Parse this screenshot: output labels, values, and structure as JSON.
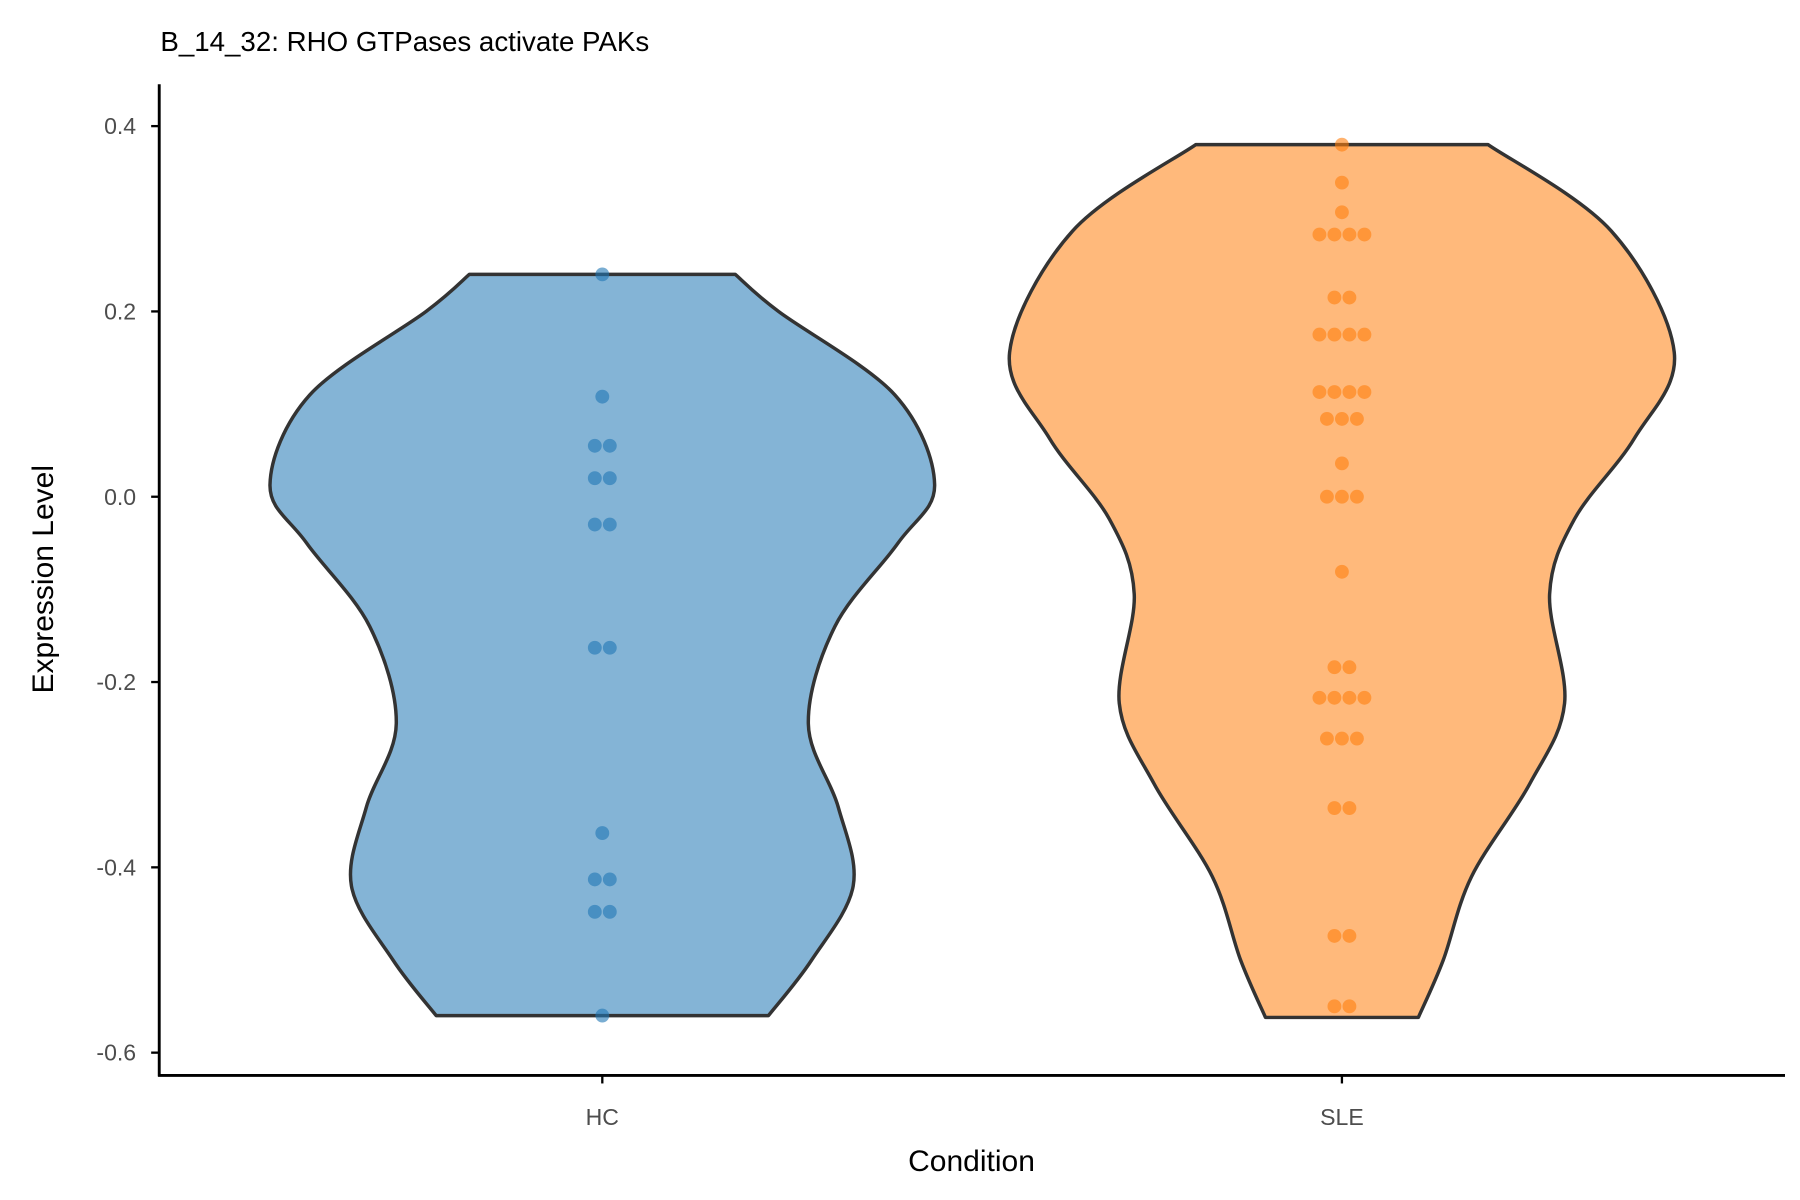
{
  "chart_data": {
    "type": "violin",
    "title": "B_14_32: RHO GTPases activate PAKs",
    "xlabel": "Condition",
    "ylabel": "Expression Level",
    "ylim": [
      -0.62,
      0.445
    ],
    "yticks": [
      0.4,
      0.2,
      0.0,
      -0.2,
      -0.4,
      -0.6
    ],
    "ytick_labels": [
      "0.4",
      "0.2",
      "0.0",
      "-0.2",
      "-0.4",
      "-0.6"
    ],
    "categories": [
      "HC",
      "SLE"
    ],
    "grid": false,
    "legend": "none",
    "series": [
      {
        "name": "HC",
        "fill": "#1f77b4",
        "point_color": "#1f77b4",
        "density_profile": [
          [
            0.24,
            0.4
          ],
          [
            0.2,
            0.53
          ],
          [
            0.11,
            0.88
          ],
          [
            0.013,
            1.0
          ],
          [
            -0.05,
            0.89
          ],
          [
            -0.14,
            0.7
          ],
          [
            -0.245,
            0.62
          ],
          [
            -0.335,
            0.71
          ],
          [
            -0.42,
            0.755
          ],
          [
            -0.5,
            0.63
          ],
          [
            -0.56,
            0.5
          ]
        ],
        "points": [
          [
            0.24,
            1
          ],
          [
            0.108,
            1
          ],
          [
            0.055,
            2
          ],
          [
            0.02,
            2
          ],
          [
            -0.03,
            2
          ],
          [
            -0.163,
            2
          ],
          [
            -0.363,
            1
          ],
          [
            -0.413,
            2
          ],
          [
            -0.448,
            2
          ],
          [
            -0.56,
            1
          ]
        ]
      },
      {
        "name": "SLE",
        "fill": "#ff7f0e",
        "point_color": "#ff7f0e",
        "density_profile": [
          [
            0.38,
            0.44
          ],
          [
            0.287,
            0.81
          ],
          [
            0.156,
            1.0
          ],
          [
            0.063,
            0.88
          ],
          [
            -0.024,
            0.7
          ],
          [
            -0.105,
            0.625
          ],
          [
            -0.223,
            0.67
          ],
          [
            -0.31,
            0.565
          ],
          [
            -0.41,
            0.39
          ],
          [
            -0.5,
            0.305
          ],
          [
            -0.562,
            0.23
          ]
        ],
        "points": [
          [
            0.38,
            1
          ],
          [
            0.339,
            1
          ],
          [
            0.307,
            1
          ],
          [
            0.283,
            4
          ],
          [
            0.215,
            2
          ],
          [
            0.175,
            4
          ],
          [
            0.113,
            4
          ],
          [
            0.084,
            3
          ],
          [
            0.036,
            1
          ],
          [
            0.0,
            3
          ],
          [
            -0.081,
            1
          ],
          [
            -0.184,
            2
          ],
          [
            -0.217,
            4
          ],
          [
            -0.261,
            3
          ],
          [
            -0.336,
            2
          ],
          [
            -0.474,
            2
          ],
          [
            -0.55,
            2
          ]
        ]
      }
    ]
  }
}
